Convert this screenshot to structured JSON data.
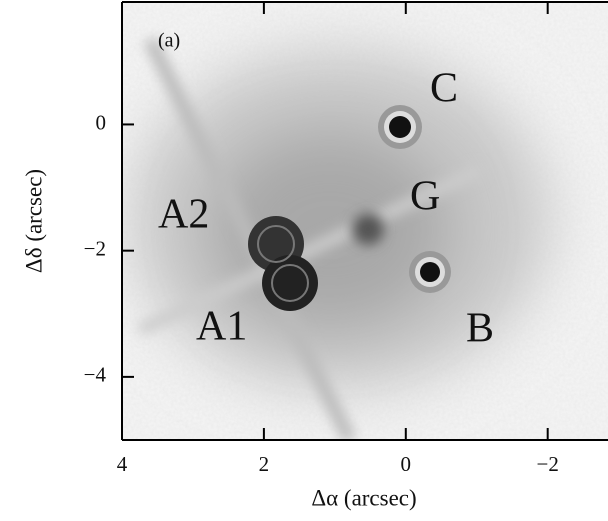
{
  "chart_data": {
    "type": "image",
    "xlabel": "Δα (arcsec)",
    "ylabel": "Δδ (arcsec)",
    "xlim": [
      4,
      -2.85
    ],
    "ylim": [
      -5.0,
      1.94
    ],
    "xticks": [
      4,
      2,
      0,
      {
        "value": -2,
        "label": "−2"
      }
    ],
    "yticks": [
      0,
      {
        "value": -2,
        "label": "−2"
      },
      {
        "value": -4,
        "label": "−4"
      }
    ],
    "panel_label": "(a)",
    "annotations": [
      "C",
      "G",
      "A2",
      "A1",
      "B"
    ]
  }
}
